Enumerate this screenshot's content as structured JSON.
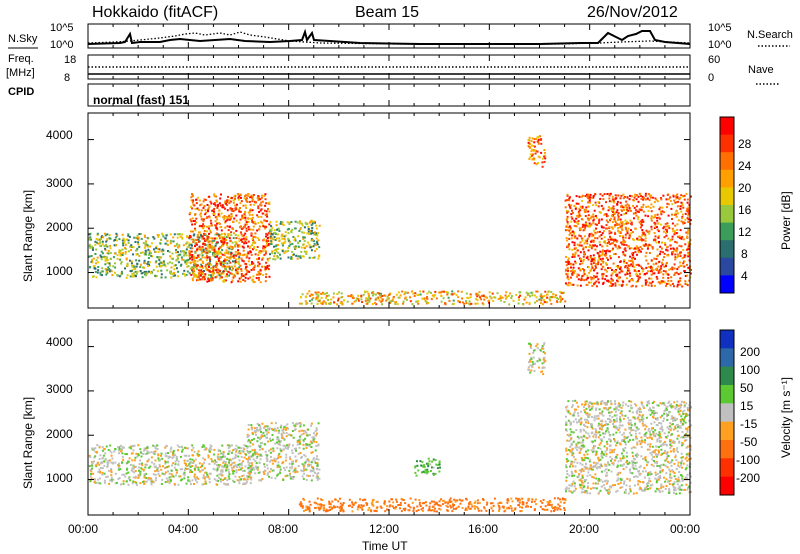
{
  "header": {
    "title": "Hokkaido (fitACF)",
    "beam": "Beam 15",
    "date": "26/Nov/2012"
  },
  "noise_panel": {
    "left_label": "N.Sky",
    "right_label": "N.Search",
    "left_ticks": [
      "10^5",
      "10^0"
    ],
    "right_ticks": [
      "10^5",
      "10^0"
    ]
  },
  "freq_panel": {
    "left_label_1": "Freq.",
    "left_label_2": "[MHz]",
    "left_ticks": [
      "18",
      "8"
    ],
    "right_label": "Nave",
    "right_ticks": [
      "60",
      "0"
    ]
  },
  "cpid_panel": {
    "label": "CPID",
    "mode_text": "normal (fast) 151"
  },
  "axes": {
    "ylabel": "Slant Range [km]",
    "yticks": [
      "4000",
      "3000",
      "2000",
      "1000"
    ],
    "xticks": [
      "00:00",
      "04:00",
      "08:00",
      "12:00",
      "16:00",
      "20:00",
      "00:00"
    ],
    "xlabel": "Time UT"
  },
  "power_colorbar": {
    "label": "Power [dB]",
    "ticks": [
      "28",
      "24",
      "20",
      "16",
      "12",
      "8",
      "4"
    ],
    "colors": [
      "#ff0000",
      "#ff3000",
      "#ff7000",
      "#ffa000",
      "#e8c800",
      "#9ac83c",
      "#3c9c5a",
      "#2a6e70",
      "#2a48a0",
      "#0000ff"
    ]
  },
  "velocity_colorbar": {
    "label": "Velocity [m s⁻¹]",
    "ticks": [
      "200",
      "100",
      "50",
      "15",
      "-15",
      "-50",
      "-100",
      "-200"
    ],
    "colors": [
      "#1030c0",
      "#2d68a8",
      "#2e8a4a",
      "#5cc832",
      "#c0c0c0",
      "#ffa020",
      "#ff7010",
      "#ff3000",
      "#ff0000"
    ]
  },
  "chart_data": [
    {
      "type": "heatmap",
      "title": "Power",
      "xlabel": "Time UT",
      "ylabel": "Slant Range [km]",
      "xlim": [
        0,
        24
      ],
      "ylim": [
        200,
        4600
      ],
      "zlabel": "Power [dB]",
      "zlim": [
        0,
        32
      ],
      "regions": [
        {
          "t": [
            0.0,
            6.0
          ],
          "r": [
            900,
            1900
          ],
          "power": 14
        },
        {
          "t": [
            4.0,
            7.2
          ],
          "r": [
            800,
            2800
          ],
          "power": 26
        },
        {
          "t": [
            7.2,
            9.2
          ],
          "r": [
            1300,
            2200
          ],
          "power": 14
        },
        {
          "t": [
            8.4,
            19.0
          ],
          "r": [
            300,
            600
          ],
          "power": 20
        },
        {
          "t": [
            17.5,
            18.2
          ],
          "r": [
            3400,
            4100
          ],
          "power": 24
        },
        {
          "t": [
            19.0,
            24.0
          ],
          "r": [
            700,
            2800
          ],
          "power": 26
        }
      ]
    },
    {
      "type": "heatmap",
      "title": "Velocity",
      "xlabel": "Time UT",
      "ylabel": "Slant Range [km]",
      "xlim": [
        0,
        24
      ],
      "ylim": [
        200,
        4600
      ],
      "zlabel": "Velocity [m s⁻¹]",
      "zlim": [
        -200,
        200
      ],
      "regions": [
        {
          "t": [
            0.0,
            6.5
          ],
          "r": [
            900,
            1800
          ],
          "velocity": 0
        },
        {
          "t": [
            6.3,
            9.2
          ],
          "r": [
            1000,
            2300
          ],
          "velocity": 0
        },
        {
          "t": [
            8.4,
            19.0
          ],
          "r": [
            300,
            600
          ],
          "velocity": -70
        },
        {
          "t": [
            13.0,
            14.0
          ],
          "r": [
            1100,
            1500
          ],
          "velocity": 40
        },
        {
          "t": [
            17.5,
            18.2
          ],
          "r": [
            3400,
            4100
          ],
          "velocity": 0
        },
        {
          "t": [
            19.0,
            24.0
          ],
          "r": [
            700,
            2800
          ],
          "velocity": 0
        }
      ]
    }
  ]
}
